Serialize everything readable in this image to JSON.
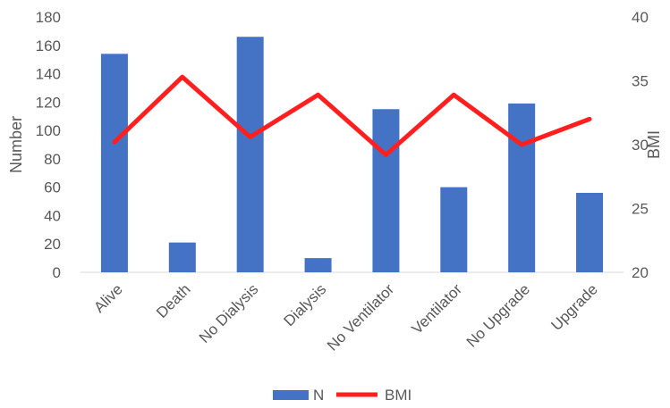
{
  "chart_data": {
    "type": "bar",
    "title": "",
    "categories": [
      "Alive",
      "Death",
      "No Dialysis",
      "Dialysis",
      "No Ventilator",
      "Ventilator",
      "No Upgrade",
      "Upgrade"
    ],
    "series": [
      {
        "name": "N",
        "type": "bar",
        "axis": "left",
        "color": "#4472c4",
        "values": [
          154,
          21,
          166,
          10,
          115,
          60,
          119,
          56
        ]
      },
      {
        "name": "BMI",
        "type": "line",
        "axis": "right",
        "color": "#ff1f1f",
        "values": [
          30.2,
          35.3,
          30.6,
          33.9,
          29.2,
          33.9,
          30.0,
          32.0
        ]
      }
    ],
    "ylabel": "Number",
    "y2label": "BMI",
    "ylim": [
      0,
      180
    ],
    "y2lim": [
      20,
      40
    ],
    "yticks": [
      "0",
      "20",
      "40",
      "60",
      "80",
      "100",
      "120",
      "140",
      "160",
      "180"
    ],
    "y2ticks": [
      "20",
      "25",
      "30",
      "35",
      "40"
    ],
    "grid": false,
    "legend_position": "bottom"
  }
}
